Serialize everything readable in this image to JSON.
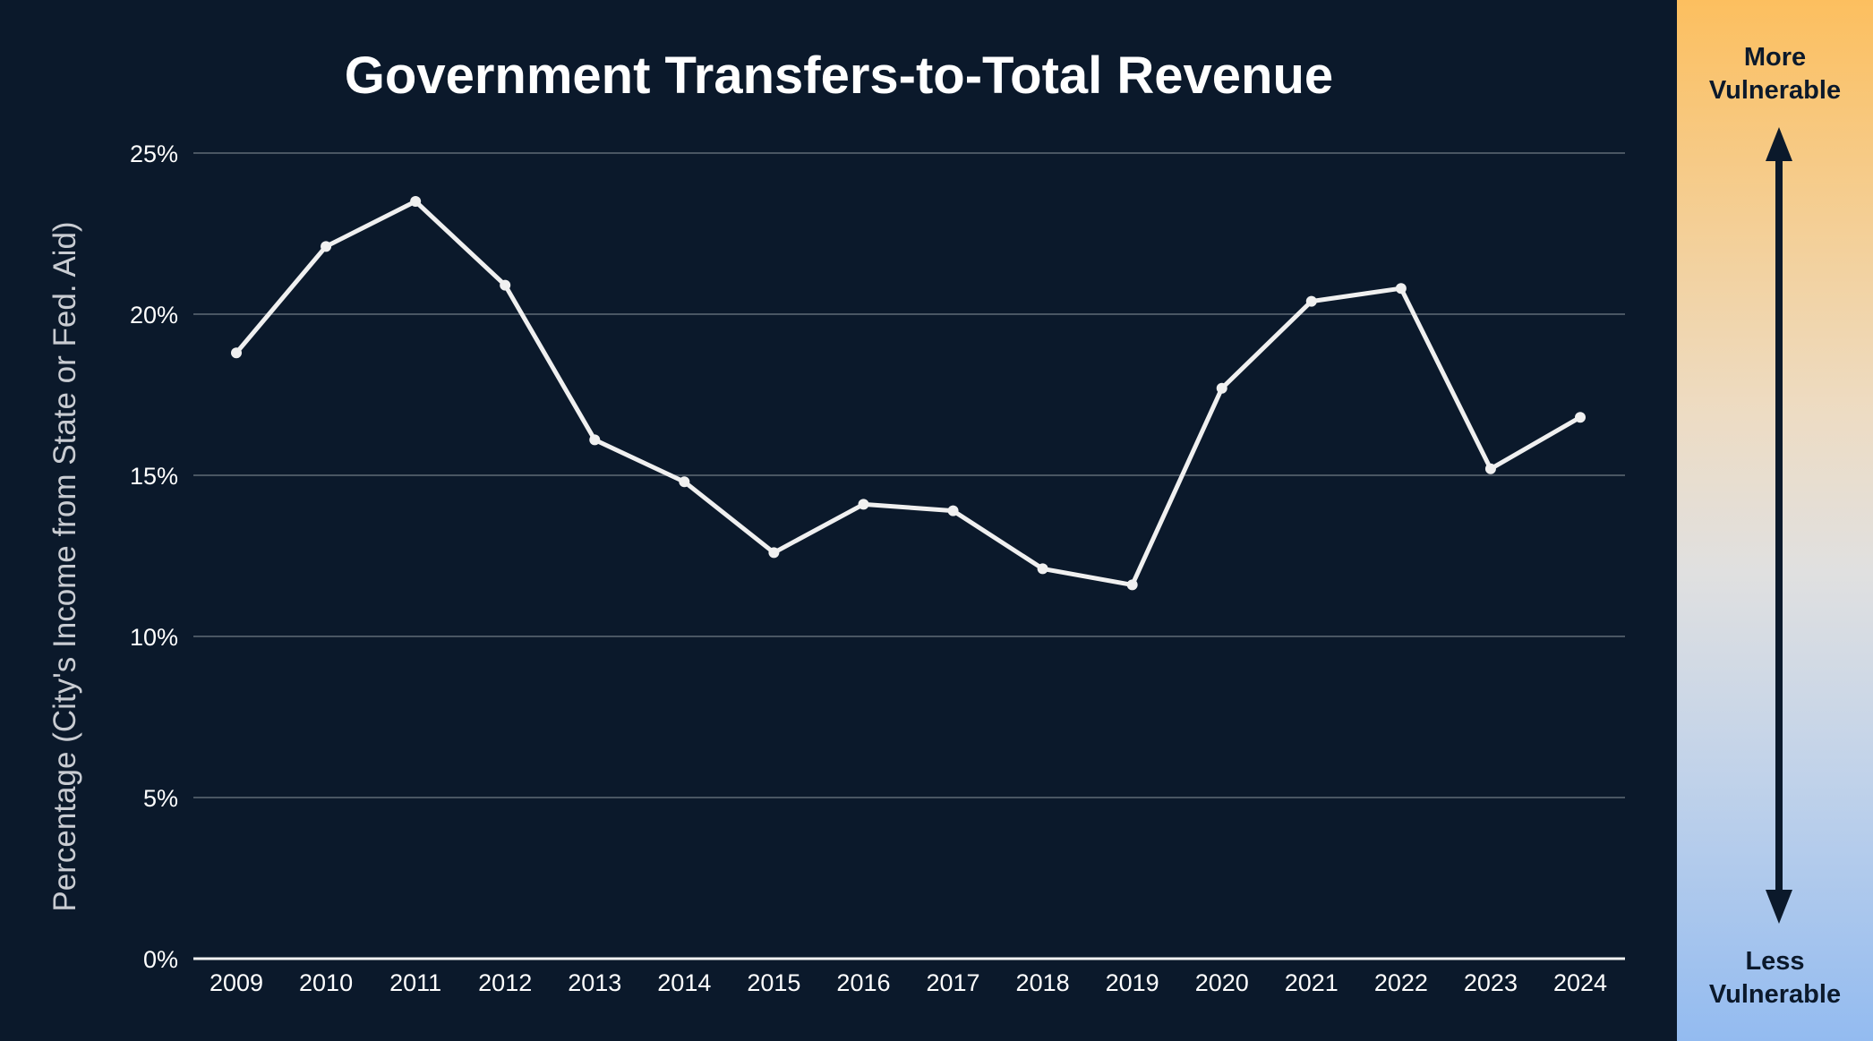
{
  "chart_data": {
    "type": "line",
    "title": "Government Transfers-to-Total Revenue",
    "ylabel": "Percentage (City's Income from State or Fed. Aid)",
    "xlabel": "",
    "categories": [
      "2009",
      "2010",
      "2011",
      "2012",
      "2013",
      "2014",
      "2015",
      "2016",
      "2017",
      "2018",
      "2019",
      "2020",
      "2021",
      "2022",
      "2023",
      "2024"
    ],
    "series": [
      {
        "values": [
          18.8,
          22.1,
          23.5,
          20.9,
          16.1,
          14.8,
          12.6,
          14.1,
          13.9,
          12.1,
          11.6,
          17.7,
          20.4,
          20.8,
          15.2,
          16.8
        ]
      }
    ],
    "ylim": [
      0,
      25
    ],
    "yticks": [
      0,
      5,
      10,
      15,
      20,
      25
    ],
    "ytick_labels": [
      "0%",
      "5%",
      "10%",
      "15%",
      "20%",
      "25%"
    ],
    "grid": true,
    "line_color": "#f0f0f0",
    "background": "#0b192b"
  },
  "sidebar": {
    "top_line1": "More",
    "top_line2": "Vulnerable",
    "bottom_line1": "Less",
    "bottom_line2": "Vulnerable"
  }
}
